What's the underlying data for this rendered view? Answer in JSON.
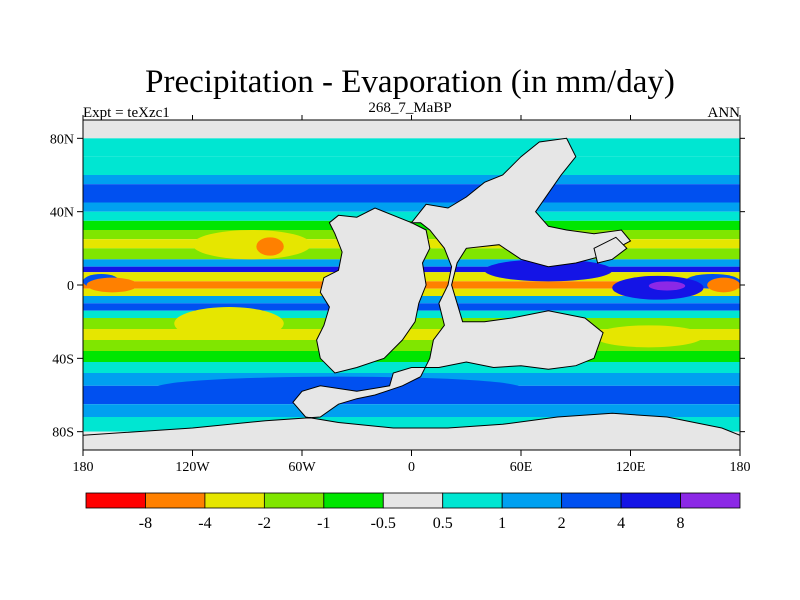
{
  "chart_data": {
    "type": "heatmap",
    "projection": "cylindrical equidistant map",
    "title": "Precipitation - Evaporation (in mm/day)",
    "left_label": "Expt = teXzc1",
    "center_label": "268_7_MaBP",
    "right_label": "ANN",
    "x_range": [
      -180,
      180
    ],
    "y_range": [
      -90,
      90
    ],
    "x_ticks": [
      {
        "value": -180,
        "label": "180"
      },
      {
        "value": -120,
        "label": "120W"
      },
      {
        "value": -60,
        "label": "60W"
      },
      {
        "value": 0,
        "label": "0"
      },
      {
        "value": 60,
        "label": "60E"
      },
      {
        "value": 120,
        "label": "120E"
      },
      {
        "value": 180,
        "label": "180"
      }
    ],
    "y_ticks": [
      {
        "value": 80,
        "label": "80N"
      },
      {
        "value": 40,
        "label": "40N"
      },
      {
        "value": 0,
        "label": "0"
      },
      {
        "value": -40,
        "label": "40S"
      },
      {
        "value": -80,
        "label": "80S"
      }
    ],
    "colorbar": {
      "levels": [
        -8,
        -4,
        -2,
        -1,
        -0.5,
        0.5,
        1,
        2,
        4,
        8
      ],
      "labels": [
        "-8",
        "-4",
        "-2",
        "-1",
        "-0.5",
        "0.5",
        "1",
        "2",
        "4",
        "8"
      ],
      "colors": [
        "#ff0000",
        "#ff8000",
        "#e6e600",
        "#80e600",
        "#00e600",
        "#e6e6e6",
        "#00e6d2",
        "#00a0f0",
        "#0050f0",
        "#1414e6",
        "#8c28e6"
      ]
    },
    "zonal_bands": [
      {
        "from_lat": 90,
        "to_lat": 80,
        "value": 0.0
      },
      {
        "from_lat": 80,
        "to_lat": 70,
        "value": 0.7
      },
      {
        "from_lat": 70,
        "to_lat": 60,
        "value": 0.7
      },
      {
        "from_lat": 60,
        "to_lat": 55,
        "value": 1.5
      },
      {
        "from_lat": 55,
        "to_lat": 45,
        "value": 2.5
      },
      {
        "from_lat": 45,
        "to_lat": 40,
        "value": 1.5
      },
      {
        "from_lat": 40,
        "to_lat": 35,
        "value": 0.7
      },
      {
        "from_lat": 35,
        "to_lat": 30,
        "value": -0.7
      },
      {
        "from_lat": 30,
        "to_lat": 25,
        "value": -1.5
      },
      {
        "from_lat": 25,
        "to_lat": 20,
        "value": -3.0
      },
      {
        "from_lat": 20,
        "to_lat": 14,
        "value": -1.5
      },
      {
        "from_lat": 14,
        "to_lat": 10,
        "value": 1.5
      },
      {
        "from_lat": 10,
        "to_lat": 7,
        "value": 6.0
      },
      {
        "from_lat": 7,
        "to_lat": 2,
        "value": -3.0
      },
      {
        "from_lat": 2,
        "to_lat": -2,
        "value": -6.0
      },
      {
        "from_lat": -2,
        "to_lat": -6,
        "value": -3.0
      },
      {
        "from_lat": -6,
        "to_lat": -10,
        "value": 1.5
      },
      {
        "from_lat": -10,
        "to_lat": -14,
        "value": 3.0
      },
      {
        "from_lat": -14,
        "to_lat": -18,
        "value": 0.7
      },
      {
        "from_lat": -18,
        "to_lat": -24,
        "value": -1.5
      },
      {
        "from_lat": -24,
        "to_lat": -30,
        "value": -3.0
      },
      {
        "from_lat": -30,
        "to_lat": -36,
        "value": -1.5
      },
      {
        "from_lat": -36,
        "to_lat": -42,
        "value": -0.7
      },
      {
        "from_lat": -42,
        "to_lat": -48,
        "value": 0.7
      },
      {
        "from_lat": -48,
        "to_lat": -55,
        "value": 1.5
      },
      {
        "from_lat": -55,
        "to_lat": -65,
        "value": 2.5
      },
      {
        "from_lat": -65,
        "to_lat": -72,
        "value": 1.5
      },
      {
        "from_lat": -72,
        "to_lat": -80,
        "value": 0.7
      },
      {
        "from_lat": -80,
        "to_lat": -90,
        "value": 0.0
      }
    ],
    "features": [
      {
        "name": "pacific-itcz",
        "value": 3.0,
        "lon": [
          150,
          180
        ],
        "lat": [
          -2,
          6
        ]
      },
      {
        "name": "pacific-itcz-west",
        "value": 3.0,
        "lon": [
          -180,
          -160
        ],
        "lat": [
          -2,
          6
        ]
      },
      {
        "name": "tropical-warm-pool",
        "value": 6.0,
        "lon": [
          110,
          160
        ],
        "lat": [
          -8,
          5
        ]
      },
      {
        "name": "tropical-warm-pool-core",
        "value": 9.0,
        "lon": [
          130,
          150
        ],
        "lat": [
          -3,
          2
        ]
      },
      {
        "name": "central-pacific-dry",
        "value": -6.0,
        "lon": [
          -178,
          -150
        ],
        "lat": [
          -4,
          4
        ]
      },
      {
        "name": "central-pacific-dry-east",
        "value": -6.0,
        "lon": [
          162,
          180
        ],
        "lat": [
          -4,
          4
        ]
      },
      {
        "name": "north-subtropic-dry-core",
        "value": -3.0,
        "lon": [
          -120,
          -55
        ],
        "lat": [
          14,
          30
        ]
      },
      {
        "name": "north-subtropic-max",
        "value": -6.0,
        "lon": [
          -85,
          -70
        ],
        "lat": [
          16,
          26
        ]
      },
      {
        "name": "south-subtropic-dry-core",
        "value": -3.0,
        "lon": [
          -130,
          -70
        ],
        "lat": [
          -30,
          -12
        ]
      },
      {
        "name": "east-subtropic-dry",
        "value": -3.0,
        "lon": [
          100,
          160
        ],
        "lat": [
          -34,
          -22
        ]
      },
      {
        "name": "southern-storm-track",
        "value": 2.5,
        "lon": [
          -140,
          60
        ],
        "lat": [
          -62,
          -50
        ]
      },
      {
        "name": "north-storm-track-east",
        "value": 6.0,
        "lon": [
          40,
          110
        ],
        "lat": [
          2,
          14
        ]
      }
    ],
    "land_mask_value": 0.0,
    "land_polygons": [
      {
        "name": "pangea-west",
        "points": [
          [
            -45,
            34
          ],
          [
            -40,
            38
          ],
          [
            -30,
            37
          ],
          [
            -20,
            42
          ],
          [
            0,
            34
          ],
          [
            8,
            30
          ],
          [
            10,
            20
          ],
          [
            6,
            12
          ],
          [
            8,
            0
          ],
          [
            4,
            -10
          ],
          [
            2,
            -20
          ],
          [
            -5,
            -30
          ],
          [
            -15,
            -40
          ],
          [
            -30,
            -45
          ],
          [
            -42,
            -48
          ],
          [
            -50,
            -40
          ],
          [
            -52,
            -30
          ],
          [
            -48,
            -22
          ],
          [
            -45,
            -12
          ],
          [
            -50,
            -4
          ],
          [
            -48,
            4
          ],
          [
            -40,
            8
          ],
          [
            -38,
            18
          ],
          [
            -42,
            28
          ]
        ]
      },
      {
        "name": "pangea-east",
        "points": [
          [
            0,
            34
          ],
          [
            8,
            44
          ],
          [
            20,
            42
          ],
          [
            30,
            48
          ],
          [
            40,
            56
          ],
          [
            50,
            60
          ],
          [
            60,
            70
          ],
          [
            70,
            78
          ],
          [
            85,
            80
          ],
          [
            90,
            70
          ],
          [
            82,
            60
          ],
          [
            75,
            50
          ],
          [
            68,
            40
          ],
          [
            75,
            32
          ],
          [
            85,
            30
          ],
          [
            100,
            28
          ],
          [
            115,
            30
          ],
          [
            120,
            24
          ],
          [
            105,
            16
          ],
          [
            90,
            12
          ],
          [
            75,
            10
          ],
          [
            60,
            14
          ],
          [
            48,
            22
          ],
          [
            30,
            20
          ],
          [
            25,
            12
          ],
          [
            22,
            0
          ],
          [
            25,
            -10
          ],
          [
            28,
            -20
          ],
          [
            40,
            -20
          ],
          [
            55,
            -18
          ],
          [
            75,
            -14
          ],
          [
            95,
            -18
          ],
          [
            105,
            -26
          ],
          [
            100,
            -40
          ],
          [
            90,
            -44
          ],
          [
            75,
            -46
          ],
          [
            60,
            -44
          ],
          [
            45,
            -45
          ],
          [
            30,
            -42
          ],
          [
            15,
            -45
          ],
          [
            0,
            -45
          ],
          [
            -10,
            -48
          ],
          [
            -12,
            -55
          ],
          [
            -30,
            -58
          ],
          [
            -50,
            -55
          ],
          [
            -60,
            -58
          ],
          [
            -65,
            -64
          ],
          [
            -58,
            -72
          ],
          [
            -40,
            -75
          ],
          [
            -10,
            -78
          ],
          [
            20,
            -78
          ],
          [
            50,
            -76
          ],
          [
            80,
            -72
          ],
          [
            110,
            -70
          ],
          [
            140,
            -72
          ],
          [
            170,
            -78
          ],
          [
            180,
            -82
          ],
          [
            180,
            -90
          ],
          [
            -180,
            -90
          ],
          [
            -180,
            -82
          ],
          [
            -120,
            -78
          ],
          [
            -80,
            -74
          ],
          [
            -50,
            -72
          ],
          [
            -40,
            -65
          ],
          [
            -30,
            -62
          ],
          [
            -20,
            -60
          ],
          [
            -5,
            -55
          ],
          [
            5,
            -50
          ],
          [
            10,
            -40
          ],
          [
            12,
            -30
          ],
          [
            18,
            -22
          ],
          [
            15,
            -10
          ],
          [
            20,
            0
          ],
          [
            22,
            10
          ],
          [
            18,
            20
          ],
          [
            10,
            30
          ],
          [
            5,
            34
          ]
        ]
      },
      {
        "name": "cathaysia",
        "points": [
          [
            100,
            20
          ],
          [
            112,
            26
          ],
          [
            118,
            20
          ],
          [
            110,
            14
          ],
          [
            102,
            12
          ]
        ]
      }
    ]
  }
}
